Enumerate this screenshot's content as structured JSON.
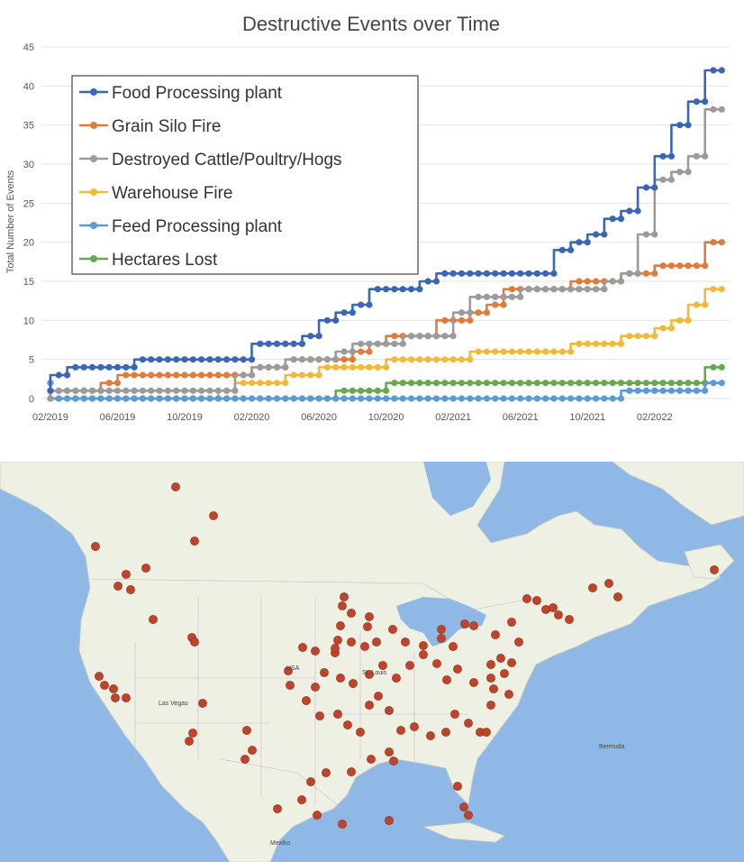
{
  "chart_data": {
    "type": "line",
    "title": "Destructive Events over Time",
    "xlabel": "",
    "ylabel": "Total Number of Events",
    "ylim": [
      0,
      45
    ],
    "yticks": [
      0,
      5,
      10,
      15,
      20,
      25,
      30,
      35,
      40,
      45
    ],
    "xlim": [
      "2019-01-15",
      "2022-06-15"
    ],
    "xticks": [
      "02/2019",
      "06/2019",
      "10/2019",
      "02/2020",
      "06/2020",
      "10/2020",
      "02/2021",
      "06/2021",
      "10/2021",
      "02/2022"
    ],
    "grid": true,
    "legend_position": "top-left",
    "series": [
      {
        "name": "Food Processing plant",
        "color": "#3a66b8",
        "x": [
          "2019-02",
          "2019-03",
          "2019-04",
          "2019-05",
          "2019-06",
          "2019-07",
          "2019-08",
          "2019-09",
          "2019-10",
          "2019-11",
          "2019-12",
          "2020-01",
          "2020-02",
          "2020-03",
          "2020-04",
          "2020-05",
          "2020-06",
          "2020-07",
          "2020-08",
          "2020-09",
          "2020-10",
          "2020-11",
          "2020-12",
          "2021-01",
          "2021-02",
          "2021-03",
          "2021-04",
          "2021-05",
          "2021-06",
          "2021-07",
          "2021-08",
          "2021-09",
          "2021-10",
          "2021-11",
          "2021-12",
          "2022-01",
          "2022-02",
          "2022-03",
          "2022-04",
          "2022-05",
          "2022-06"
        ],
        "values": [
          1,
          3,
          4,
          4,
          4,
          4,
          5,
          5,
          5,
          5,
          5,
          5,
          5,
          7,
          7,
          7,
          8,
          10,
          11,
          12,
          14,
          14,
          14,
          15,
          16,
          16,
          16,
          16,
          16,
          16,
          16,
          19,
          20,
          21,
          23,
          24,
          27,
          31,
          35,
          38,
          42
        ]
      },
      {
        "name": "Grain Silo Fire",
        "color": "#e07b39",
        "x": [
          "2019-02",
          "2019-03",
          "2019-04",
          "2019-05",
          "2019-06",
          "2019-07",
          "2019-08",
          "2019-09",
          "2019-10",
          "2019-11",
          "2019-12",
          "2020-01",
          "2020-02",
          "2020-03",
          "2020-04",
          "2020-05",
          "2020-06",
          "2020-07",
          "2020-08",
          "2020-09",
          "2020-10",
          "2020-11",
          "2020-12",
          "2021-01",
          "2021-02",
          "2021-03",
          "2021-04",
          "2021-05",
          "2021-06",
          "2021-07",
          "2021-08",
          "2021-09",
          "2021-10",
          "2021-11",
          "2021-12",
          "2022-01",
          "2022-02",
          "2022-03",
          "2022-04",
          "2022-05",
          "2022-06"
        ],
        "values": [
          1,
          1,
          1,
          1,
          2,
          3,
          3,
          3,
          3,
          3,
          3,
          3,
          3,
          4,
          4,
          5,
          5,
          5,
          5,
          6,
          7,
          8,
          8,
          8,
          10,
          10,
          11,
          12,
          14,
          14,
          14,
          14,
          15,
          15,
          15,
          16,
          16,
          17,
          17,
          17,
          20
        ]
      },
      {
        "name": "Destroyed Cattle/Poultry/Hogs",
        "color": "#9b9b9b",
        "x": [
          "2019-02",
          "2019-03",
          "2019-04",
          "2019-05",
          "2019-06",
          "2019-07",
          "2019-08",
          "2019-09",
          "2019-10",
          "2019-11",
          "2019-12",
          "2020-01",
          "2020-02",
          "2020-03",
          "2020-04",
          "2020-05",
          "2020-06",
          "2020-07",
          "2020-08",
          "2020-09",
          "2020-10",
          "2020-11",
          "2020-12",
          "2021-01",
          "2021-02",
          "2021-03",
          "2021-04",
          "2021-05",
          "2021-06",
          "2021-07",
          "2021-08",
          "2021-09",
          "2021-10",
          "2021-11",
          "2021-12",
          "2022-01",
          "2022-02",
          "2022-03",
          "2022-04",
          "2022-05",
          "2022-06"
        ],
        "values": [
          0,
          1,
          1,
          1,
          1,
          1,
          1,
          1,
          1,
          1,
          1,
          1,
          3,
          4,
          4,
          5,
          5,
          5,
          6,
          7,
          7,
          7,
          8,
          8,
          8,
          11,
          13,
          13,
          13,
          14,
          14,
          14,
          14,
          14,
          15,
          16,
          21,
          28,
          29,
          31,
          37
        ]
      },
      {
        "name": "Warehouse Fire",
        "color": "#f1b93a",
        "x": [
          "2019-02",
          "2019-03",
          "2019-04",
          "2019-05",
          "2019-06",
          "2019-07",
          "2019-08",
          "2019-09",
          "2019-10",
          "2019-11",
          "2019-12",
          "2020-01",
          "2020-02",
          "2020-03",
          "2020-04",
          "2020-05",
          "2020-06",
          "2020-07",
          "2020-08",
          "2020-09",
          "2020-10",
          "2020-11",
          "2020-12",
          "2021-01",
          "2021-02",
          "2021-03",
          "2021-04",
          "2021-05",
          "2021-06",
          "2021-07",
          "2021-08",
          "2021-09",
          "2021-10",
          "2021-11",
          "2021-12",
          "2022-01",
          "2022-02",
          "2022-03",
          "2022-04",
          "2022-05",
          "2022-06"
        ],
        "values": [
          0,
          0,
          0,
          0,
          0,
          0,
          0,
          0,
          0,
          0,
          0,
          1,
          2,
          2,
          2,
          3,
          3,
          4,
          4,
          4,
          4,
          5,
          5,
          5,
          5,
          5,
          6,
          6,
          6,
          6,
          6,
          6,
          7,
          7,
          7,
          8,
          8,
          9,
          10,
          12,
          14
        ]
      },
      {
        "name": "Feed Processing plant",
        "color": "#5b9bd5",
        "x": [
          "2019-02",
          "2019-03",
          "2019-04",
          "2019-05",
          "2019-06",
          "2019-07",
          "2019-08",
          "2019-09",
          "2019-10",
          "2019-11",
          "2019-12",
          "2020-01",
          "2020-02",
          "2020-03",
          "2020-04",
          "2020-05",
          "2020-06",
          "2020-07",
          "2020-08",
          "2020-09",
          "2020-10",
          "2020-11",
          "2020-12",
          "2021-01",
          "2021-02",
          "2021-03",
          "2021-04",
          "2021-05",
          "2021-06",
          "2021-07",
          "2021-08",
          "2021-09",
          "2021-10",
          "2021-11",
          "2021-12",
          "2022-01",
          "2022-02",
          "2022-03",
          "2022-04",
          "2022-05",
          "2022-06"
        ],
        "values": [
          2,
          0,
          0,
          0,
          0,
          0,
          0,
          0,
          0,
          0,
          0,
          0,
          0,
          0,
          0,
          0,
          0,
          0,
          0,
          0,
          0,
          0,
          0,
          0,
          0,
          0,
          0,
          0,
          0,
          0,
          0,
          0,
          0,
          0,
          0,
          1,
          1,
          1,
          1,
          1,
          2
        ]
      },
      {
        "name": "Hectares Lost",
        "color": "#6aa84f",
        "x": [
          "2019-02",
          "2019-03",
          "2019-04",
          "2019-05",
          "2019-06",
          "2019-07",
          "2019-08",
          "2019-09",
          "2019-10",
          "2019-11",
          "2019-12",
          "2020-01",
          "2020-02",
          "2020-03",
          "2020-04",
          "2020-05",
          "2020-06",
          "2020-07",
          "2020-08",
          "2020-09",
          "2020-10",
          "2020-11",
          "2020-12",
          "2021-01",
          "2021-02",
          "2021-03",
          "2021-04",
          "2021-05",
          "2021-06",
          "2021-07",
          "2021-08",
          "2021-09",
          "2021-10",
          "2021-11",
          "2021-12",
          "2022-01",
          "2022-02",
          "2022-03",
          "2022-04",
          "2022-05",
          "2022-06"
        ],
        "values": [
          0,
          0,
          0,
          0,
          0,
          0,
          0,
          0,
          0,
          0,
          0,
          0,
          0,
          0,
          0,
          0,
          0,
          0,
          1,
          1,
          1,
          2,
          2,
          2,
          2,
          2,
          2,
          2,
          2,
          2,
          2,
          2,
          2,
          2,
          2,
          2,
          2,
          2,
          2,
          2,
          4
        ]
      }
    ]
  },
  "map": {
    "land_color": "#eef0e4",
    "ocean_color": "#8fb8e6",
    "lake_color": "#8fb8e6",
    "marker_color": "#c0442a",
    "labels": [
      "USA",
      "Mexiko",
      "Las Vegas",
      "St. Louis",
      "Bermuda"
    ]
  }
}
